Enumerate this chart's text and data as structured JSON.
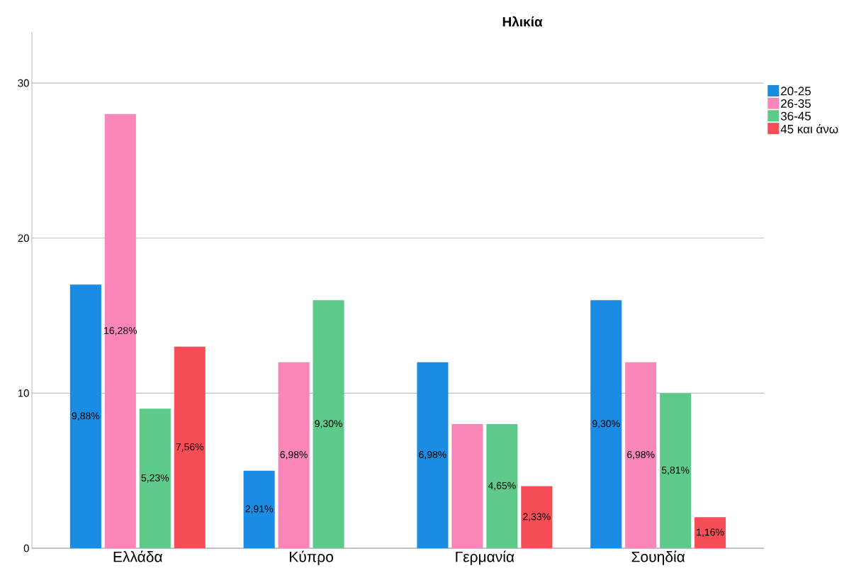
{
  "chart_data": {
    "type": "bar",
    "title": "Ηλικία",
    "categories": [
      "Ελλάδα",
      "Κύπρο",
      "Γερμανία",
      "Σουηδία"
    ],
    "series": [
      {
        "name": "20-25",
        "color": "#1a8ce3",
        "values": [
          17,
          5,
          12,
          16
        ]
      },
      {
        "name": "26-35",
        "color": "#fb87b9",
        "values": [
          28,
          12,
          8,
          12
        ]
      },
      {
        "name": "36-45",
        "color": "#5dca8a",
        "values": [
          9,
          16,
          8,
          10
        ]
      },
      {
        "name": "45 και άνω",
        "color": "#f64d56",
        "values": [
          13,
          null,
          4,
          2
        ]
      }
    ],
    "annotations": [
      "9,88%",
      "16,28%",
      "5,23%",
      "7,56%",
      "2,91%",
      "6,98%",
      "9,30%",
      "6,98%",
      "4,65%",
      "2,33%",
      "9,30%",
      "6,98%",
      "5,81%",
      "1,16%"
    ],
    "ylim": [
      0,
      33.3
    ],
    "yticks": [
      0,
      10,
      20,
      30
    ],
    "grid": "y",
    "legend": "top right"
  }
}
